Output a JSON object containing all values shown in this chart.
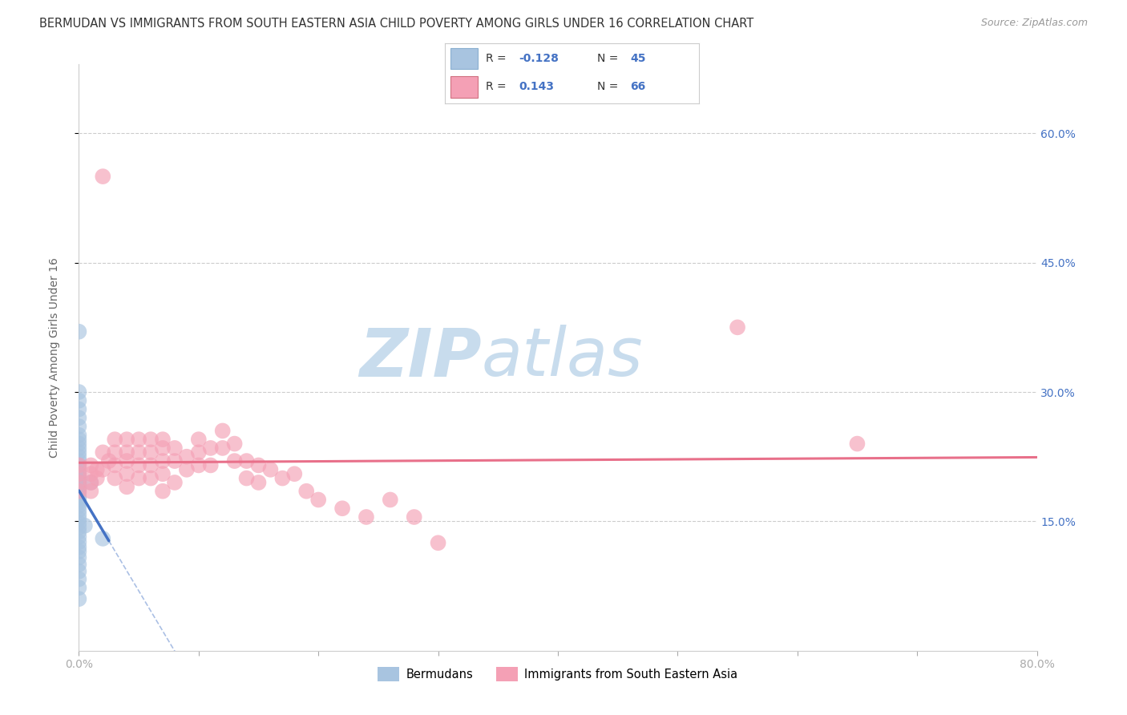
{
  "title": "BERMUDAN VS IMMIGRANTS FROM SOUTH EASTERN ASIA CHILD POVERTY AMONG GIRLS UNDER 16 CORRELATION CHART",
  "source": "Source: ZipAtlas.com",
  "ylabel": "Child Poverty Among Girls Under 16",
  "xlim": [
    0.0,
    0.8
  ],
  "ylim": [
    0.0,
    0.68
  ],
  "xtick_positions": [
    0.0,
    0.1,
    0.2,
    0.3,
    0.4,
    0.5,
    0.6,
    0.7,
    0.8
  ],
  "ytick_positions": [
    0.15,
    0.3,
    0.45,
    0.6
  ],
  "ytick_labels": [
    "15.0%",
    "30.0%",
    "45.0%",
    "60.0%"
  ],
  "grid_color": "#cccccc",
  "background_color": "#ffffff",
  "bermuda_color": "#a8c4e0",
  "sea_color": "#f4a0b5",
  "bermuda_line_color": "#4472c4",
  "sea_line_color": "#e8708a",
  "bermuda_r": -0.128,
  "bermuda_n": 45,
  "sea_r": 0.143,
  "sea_n": 66,
  "watermark_zip": "ZIP",
  "watermark_atlas": "atlas",
  "watermark_color_zip": "#c5d8ec",
  "watermark_color_atlas": "#c5d8ec",
  "bermuda_scatter_x": [
    0.0,
    0.0,
    0.0,
    0.0,
    0.0,
    0.0,
    0.0,
    0.0,
    0.0,
    0.0,
    0.0,
    0.0,
    0.0,
    0.0,
    0.0,
    0.0,
    0.0,
    0.0,
    0.0,
    0.0,
    0.0,
    0.0,
    0.0,
    0.0,
    0.0,
    0.0,
    0.0,
    0.0,
    0.0,
    0.0,
    0.0,
    0.0,
    0.0,
    0.0,
    0.0,
    0.0,
    0.0,
    0.0,
    0.0,
    0.0,
    0.0,
    0.0,
    0.005,
    0.01,
    0.02
  ],
  "bermuda_scatter_y": [
    0.37,
    0.3,
    0.29,
    0.28,
    0.27,
    0.26,
    0.25,
    0.245,
    0.24,
    0.235,
    0.23,
    0.225,
    0.22,
    0.215,
    0.21,
    0.205,
    0.2,
    0.197,
    0.194,
    0.19,
    0.187,
    0.183,
    0.178,
    0.175,
    0.172,
    0.168,
    0.163,
    0.158,
    0.153,
    0.148,
    0.143,
    0.138,
    0.132,
    0.126,
    0.12,
    0.115,
    0.108,
    0.1,
    0.092,
    0.083,
    0.073,
    0.06,
    0.145,
    0.195,
    0.13
  ],
  "sea_scatter_x": [
    0.0,
    0.0,
    0.0,
    0.0,
    0.01,
    0.01,
    0.01,
    0.01,
    0.015,
    0.015,
    0.02,
    0.02,
    0.02,
    0.025,
    0.03,
    0.03,
    0.03,
    0.03,
    0.04,
    0.04,
    0.04,
    0.04,
    0.04,
    0.05,
    0.05,
    0.05,
    0.05,
    0.06,
    0.06,
    0.06,
    0.06,
    0.07,
    0.07,
    0.07,
    0.07,
    0.07,
    0.08,
    0.08,
    0.08,
    0.09,
    0.09,
    0.1,
    0.1,
    0.1,
    0.11,
    0.11,
    0.12,
    0.12,
    0.13,
    0.13,
    0.14,
    0.14,
    0.15,
    0.15,
    0.16,
    0.17,
    0.18,
    0.19,
    0.2,
    0.22,
    0.24,
    0.26,
    0.28,
    0.3,
    0.55,
    0.65
  ],
  "sea_scatter_y": [
    0.215,
    0.205,
    0.195,
    0.185,
    0.215,
    0.205,
    0.195,
    0.185,
    0.21,
    0.2,
    0.55,
    0.23,
    0.21,
    0.22,
    0.245,
    0.23,
    0.215,
    0.2,
    0.245,
    0.23,
    0.22,
    0.205,
    0.19,
    0.245,
    0.23,
    0.215,
    0.2,
    0.245,
    0.23,
    0.215,
    0.2,
    0.245,
    0.235,
    0.22,
    0.205,
    0.185,
    0.235,
    0.22,
    0.195,
    0.225,
    0.21,
    0.245,
    0.23,
    0.215,
    0.235,
    0.215,
    0.255,
    0.235,
    0.24,
    0.22,
    0.22,
    0.2,
    0.215,
    0.195,
    0.21,
    0.2,
    0.205,
    0.185,
    0.175,
    0.165,
    0.155,
    0.175,
    0.155,
    0.125,
    0.375,
    0.24
  ]
}
